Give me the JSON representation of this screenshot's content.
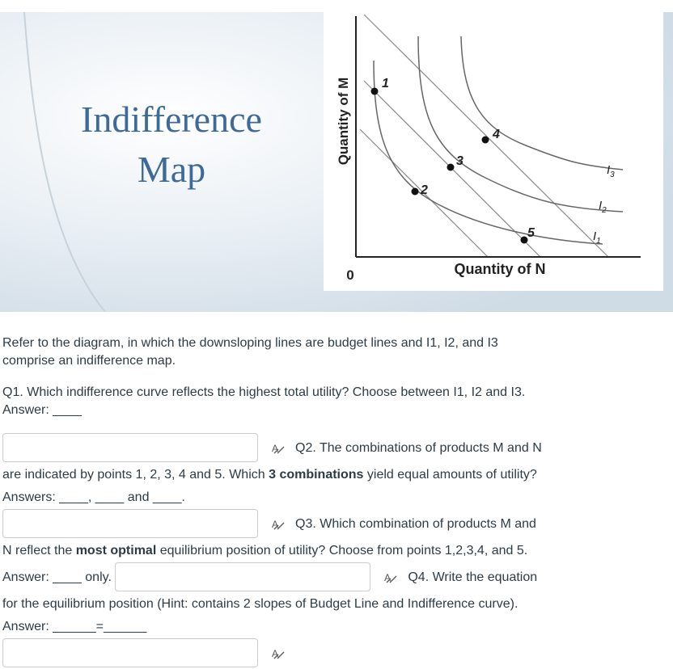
{
  "slide": {
    "title_line1": "Indifference",
    "title_line2": "Map"
  },
  "diagram": {
    "y_axis_label": "Quantity of M",
    "origin": "0",
    "x_axis_label": "Quantity of N",
    "points": [
      "1",
      "2",
      "3",
      "4",
      "5"
    ],
    "curves": [
      {
        "name": "I",
        "sub": "3"
      },
      {
        "name": "I",
        "sub": "2"
      },
      {
        "name": "I",
        "sub": "1"
      }
    ]
  },
  "intro": "Refer to the diagram, in which the downsloping lines are budget lines and I1, I2, and I3 comprise an indifference map.",
  "q1": "Q1. Which indifference curve  reflects the highest total utility? Choose between I1, I2 and I3. Answer: ____",
  "q2": {
    "before": "Q2. The combinations of products M and N are indicated by points 1, 2, 3, 4 and 5. Which ",
    "bold": "3 combinations",
    "after": " yield equal amounts of utility? Answers: ____, ____ and ____."
  },
  "q3": {
    "before": "Q3. Which combination of products M and N reflect the ",
    "bold": "most optimal",
    "after": " equilibrium position of utility? Choose from points 1,2,3,4, and 5. Answer: ____ only."
  },
  "q4": "Q4. Write the equation for the equilibrium position (Hint: contains 2 slopes of Budget Line and Indifference curve). Answer: ______=______"
}
